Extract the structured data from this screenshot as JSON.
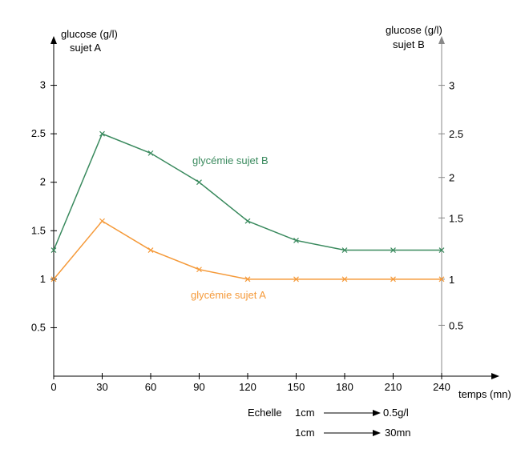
{
  "chart_data": {
    "type": "line",
    "x": [
      0,
      30,
      60,
      90,
      120,
      150,
      180,
      210,
      240
    ],
    "x_tick_labels": [
      "0",
      "30",
      "60",
      "90",
      "120",
      "150",
      "180",
      "210",
      "240"
    ],
    "xlim": [
      0,
      240
    ],
    "xlabel": "temps (mn)",
    "left_axis": {
      "label_line1": "glucose (g/l)",
      "label_line2": "sujet A",
      "ylim": [
        0,
        3.5
      ],
      "ticks": [
        0.5,
        1,
        1.5,
        2,
        2.5,
        3
      ],
      "tick_labels": [
        "0.5",
        "1",
        "1.5",
        "2",
        "2.5",
        "3"
      ]
    },
    "right_axis": {
      "label_line1": "glucose (g/l)",
      "label_line2": "sujet B",
      "tick_labels": [
        "0.5",
        "1",
        "1.5",
        "2",
        "2.5",
        "3"
      ]
    },
    "series": [
      {
        "name": "glycémie sujet B",
        "color": "#3a8a5e",
        "values": [
          1.3,
          2.5,
          2.3,
          2.0,
          1.6,
          1.4,
          1.3,
          1.3,
          1.3
        ]
      },
      {
        "name": "glycémie sujet A",
        "color": "#f59a3a",
        "values": [
          1.0,
          1.6,
          1.3,
          1.1,
          1.0,
          1.0,
          1.0,
          1.0,
          1.0
        ]
      }
    ],
    "grid": false,
    "scale": {
      "title": "Echelle",
      "row1": {
        "left": "1cm",
        "right": "0.5g/l"
      },
      "row2": {
        "left": "1cm",
        "right": "30mn"
      }
    }
  }
}
